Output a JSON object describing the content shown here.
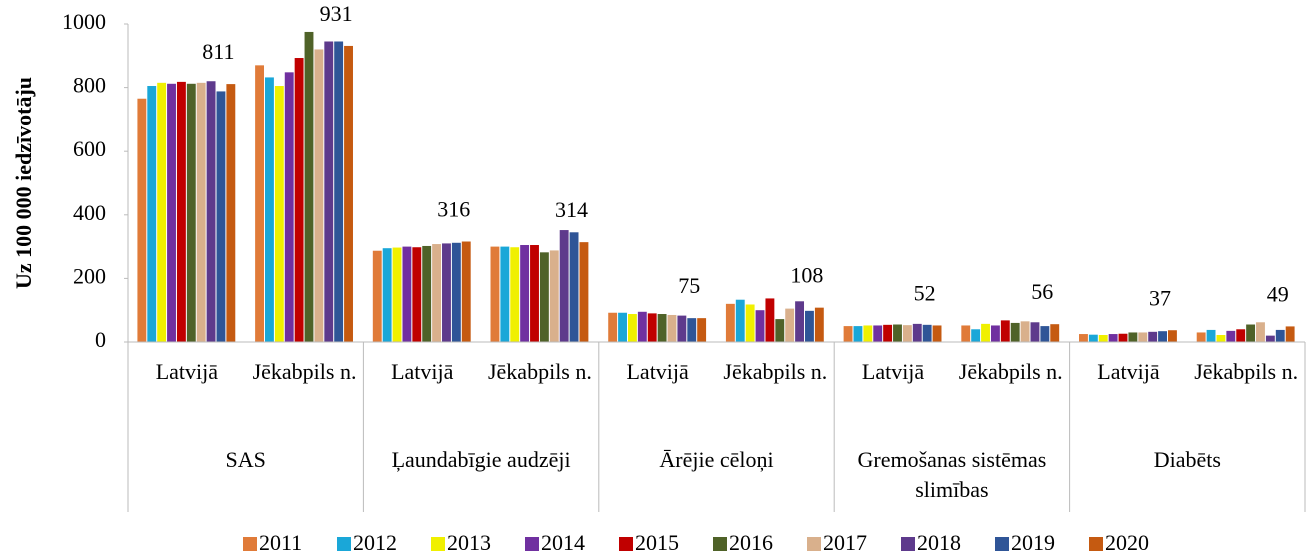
{
  "chart_data": {
    "type": "bar",
    "y_label": "Uz 100 000 iedzīvotāju",
    "groups": [
      {
        "name": "SAS",
        "categories": [
          "Latvijā",
          "Jēkabpils n."
        ]
      },
      {
        "name": "Ļaundabīgie audzēji",
        "categories": [
          "Latvijā",
          "Jēkabpils n."
        ]
      },
      {
        "name": "Ārējie cēloņi",
        "categories": [
          "Latvijā",
          "Jēkabpils n."
        ]
      },
      {
        "name": "Gremošanas sistēmas slimības",
        "categories": [
          "Latvijā",
          "Jēkabpils n."
        ]
      },
      {
        "name": "Diabēts",
        "categories": [
          "Latvijā",
          "Jēkabpils n."
        ]
      }
    ],
    "ylim": [
      0,
      1000
    ],
    "yticks": [
      0,
      200,
      400,
      600,
      800,
      1000
    ],
    "series": [
      {
        "name": "2011",
        "color": "#e07b39",
        "values": [
          765,
          870,
          287,
          300,
          92,
          120,
          50,
          52,
          25,
          30
        ]
      },
      {
        "name": "2012",
        "color": "#1aa7d8",
        "values": [
          805,
          832,
          295,
          300,
          92,
          133,
          50,
          40,
          23,
          38
        ]
      },
      {
        "name": "2013",
        "color": "#f0f000",
        "values": [
          815,
          805,
          297,
          298,
          88,
          118,
          52,
          57,
          22,
          22
        ]
      },
      {
        "name": "2014",
        "color": "#7030a0",
        "values": [
          812,
          848,
          300,
          305,
          95,
          100,
          52,
          52,
          25,
          35
        ]
      },
      {
        "name": "2015",
        "color": "#c00000",
        "values": [
          818,
          893,
          298,
          305,
          90,
          137,
          54,
          68,
          26,
          40
        ]
      },
      {
        "name": "2016",
        "color": "#4f6228",
        "values": [
          812,
          975,
          302,
          282,
          88,
          72,
          55,
          60,
          30,
          55
        ]
      },
      {
        "name": "2017",
        "color": "#d9b08c",
        "values": [
          815,
          920,
          308,
          288,
          85,
          105,
          53,
          65,
          30,
          62
        ]
      },
      {
        "name": "2018",
        "color": "#5e3a8c",
        "values": [
          820,
          945,
          310,
          352,
          83,
          128,
          57,
          62,
          32,
          20
        ]
      },
      {
        "name": "2019",
        "color": "#2f5597",
        "values": [
          788,
          945,
          312,
          345,
          75,
          98,
          54,
          50,
          34,
          38
        ]
      },
      {
        "name": "2020",
        "color": "#c55a11",
        "values": [
          811,
          931,
          316,
          314,
          75,
          108,
          52,
          56,
          37,
          49
        ],
        "data_labels": true
      }
    ]
  }
}
